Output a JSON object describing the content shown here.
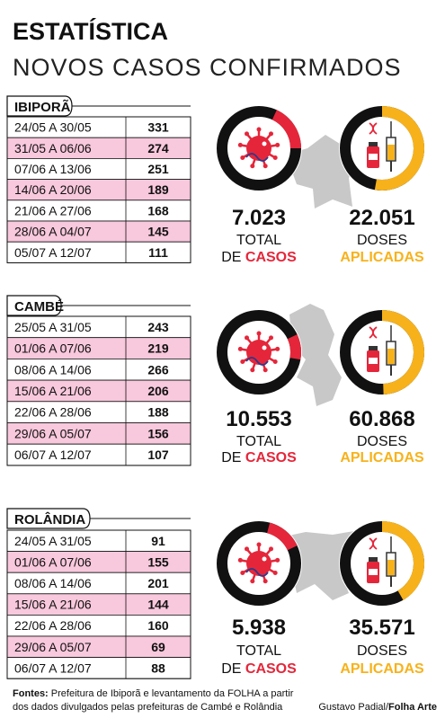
{
  "header": {
    "title": "ESTATÍSTICA",
    "subtitle": "NOVOS CASOS CONFIRMADOS"
  },
  "labels": {
    "total": "TOTAL",
    "de": "DE",
    "casos": "CASOS",
    "doses": "DOSES",
    "aplicadas": "APLICADAS"
  },
  "sections": [
    {
      "name": "IBIPORÃ",
      "rows": [
        [
          "24/05 A 30/05",
          331
        ],
        [
          "31/05 A 06/06",
          274
        ],
        [
          "07/06 A 13/06",
          251
        ],
        [
          "14/06 A 20/06",
          189
        ],
        [
          "21/06 A 27/06",
          168
        ],
        [
          "28/06 A 04/07",
          145
        ],
        [
          "05/07 A 12/07",
          111
        ]
      ],
      "total_cases": "7.023",
      "total_doses": "22.051"
    },
    {
      "name": "CAMBÉ",
      "rows": [
        [
          "25/05 A 31/05",
          243
        ],
        [
          "01/06 A 07/06",
          219
        ],
        [
          "08/06 A 14/06",
          266
        ],
        [
          "15/06 A 21/06",
          206
        ],
        [
          "22/06 A 28/06",
          188
        ],
        [
          "29/06 A 05/07",
          156
        ],
        [
          "06/07 A 12/07",
          107
        ]
      ],
      "total_cases": "10.553",
      "total_doses": "60.868"
    },
    {
      "name": "ROLÂNDIA",
      "rows": [
        [
          "24/05 A 31/05",
          91
        ],
        [
          "01/06 A 07/06",
          155
        ],
        [
          "08/06 A 14/06",
          201
        ],
        [
          "15/06 A 21/06",
          144
        ],
        [
          "22/06 A 28/06",
          160
        ],
        [
          "29/06 A 05/07",
          69
        ],
        [
          "06/07 A 12/07",
          88
        ]
      ],
      "total_cases": "5.938",
      "total_doses": "35.571"
    }
  ],
  "footer": {
    "sources_label": "Fontes:",
    "sources_line1": "Prefeitura de Ibiporã e levantamento da FOLHA a partir",
    "sources_line2": "dos dados divulgados pelas prefeituras de Cambé e Rolândia",
    "credit_author": "Gustavo Padial/",
    "credit_org": "Folha Arte"
  }
}
